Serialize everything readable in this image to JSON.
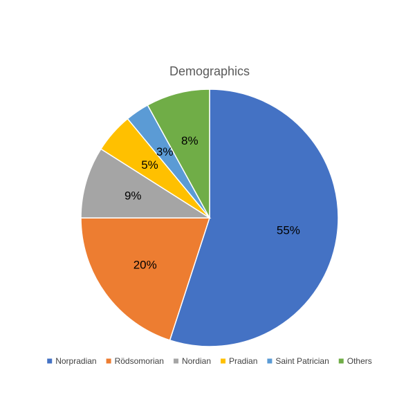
{
  "chart_data": {
    "type": "pie",
    "title": "Demographics",
    "legend_position": "bottom",
    "slices": [
      {
        "name": "Norpradian",
        "value": 55,
        "label": "55%",
        "color": "#4472C4"
      },
      {
        "name": "Rödsomorian",
        "value": 20,
        "label": "20%",
        "color": "#ED7D31"
      },
      {
        "name": "Nordian",
        "value": 9,
        "label": "9%",
        "color": "#A5A5A5"
      },
      {
        "name": "Pradian",
        "value": 5,
        "label": "5%",
        "color": "#FFC000"
      },
      {
        "name": "Saint Patrician",
        "value": 3,
        "label": "3%",
        "color": "#5B9BD5"
      },
      {
        "name": "Others",
        "value": 8,
        "label": "8%",
        "color": "#70AD47"
      }
    ]
  }
}
